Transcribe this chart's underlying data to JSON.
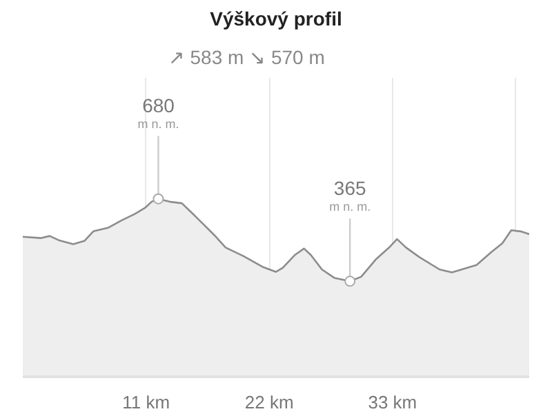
{
  "chart_data": {
    "type": "area",
    "title": "Výškový profil",
    "annotations": [
      "↗ 583 m",
      "↘ 570 m"
    ],
    "value_labels": [
      null,
      null,
      null,
      null,
      null,
      null,
      null,
      null,
      null,
      null,
      null,
      null,
      "680\nm n. m.",
      null,
      null,
      null,
      null,
      null,
      null,
      null,
      null,
      null,
      null,
      null,
      null,
      null,
      null,
      null,
      "365\nm n. m.",
      null,
      null,
      null,
      null,
      null,
      null,
      null,
      null,
      null,
      null,
      null,
      null,
      null,
      null
    ],
    "x": [
      0,
      1.6,
      2.4,
      3.2,
      4.5,
      5.5,
      6.3,
      7.6,
      8.8,
      10.0,
      10.9,
      11.5,
      12.1,
      13.1,
      14.2,
      15.2,
      16.0,
      17.1,
      18.1,
      19.7,
      21.4,
      22.6,
      23.2,
      24.3,
      25.1,
      25.7,
      26.7,
      27.8,
      29.2,
      30.2,
      31.5,
      32.7,
      33.4,
      34.2,
      35.4,
      37.2,
      38.3,
      40.5,
      41.8,
      42.8,
      43.6,
      44.5,
      45.2
    ],
    "values": [
      535,
      530,
      538,
      522,
      507,
      519,
      556,
      569,
      597,
      622,
      645,
      669,
      680,
      669,
      663,
      622,
      588,
      541,
      494,
      461,
      420,
      401,
      416,
      466,
      490,
      466,
      410,
      378,
      365,
      382,
      448,
      494,
      526,
      494,
      457,
      410,
      399,
      427,
      476,
      510,
      560,
      555,
      545
    ],
    "color": "#8c8c8c",
    "xlim": [
      0,
      45.2
    ],
    "xticks": [
      {
        "value": 11,
        "label": "11 km"
      },
      {
        "value": 22,
        "label": "22 km"
      },
      {
        "value": 33,
        "label": "33 km"
      },
      {
        "value": 44,
        "label": null
      }
    ],
    "grid": "x",
    "tick_labels": "x"
  }
}
